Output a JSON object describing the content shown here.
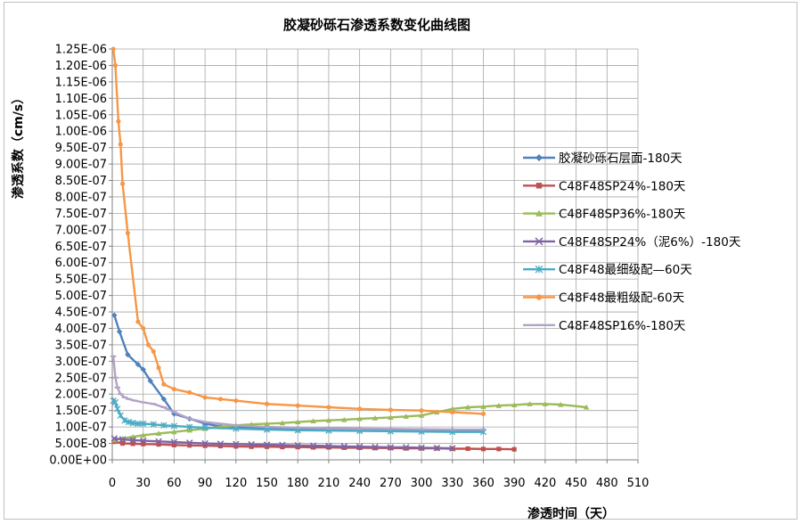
{
  "chart_data": {
    "type": "line",
    "title": "胶凝砂砾石渗透系数变化曲线图",
    "xlabel": "渗透时间（天）",
    "ylabel": "渗透系数（cm/s）",
    "xlim": [
      0,
      510
    ],
    "ylim": [
      0,
      1.25e-06
    ],
    "x_ticks": [
      "0",
      "30",
      "60",
      "90",
      "120",
      "150",
      "180",
      "210",
      "240",
      "270",
      "300",
      "330",
      "360",
      "390",
      "420",
      "450",
      "480",
      "510"
    ],
    "y_ticks": [
      "0.00E+00",
      "5.00E-08",
      "1.00E-07",
      "1.50E-07",
      "2.00E-07",
      "2.50E-07",
      "3.00E-07",
      "3.50E-07",
      "4.00E-07",
      "4.50E-07",
      "5.00E-07",
      "5.50E-07",
      "6.00E-07",
      "6.50E-07",
      "7.00E-07",
      "7.50E-07",
      "8.00E-07",
      "8.50E-07",
      "9.00E-07",
      "9.50E-07",
      "1.00E-06",
      "1.05E-06",
      "1.10E-06",
      "1.15E-06",
      "1.20E-06",
      "1.25E-06"
    ],
    "grid": true,
    "legend_position": "right",
    "series": [
      {
        "name": "胶凝砂砾石层面-180天",
        "color": "#4f81bd",
        "marker": "diamond",
        "x": [
          2,
          7,
          15,
          25,
          30,
          37,
          50,
          60,
          75,
          90,
          105,
          120,
          150,
          180,
          210,
          240,
          270,
          300,
          330,
          360
        ],
        "y": [
          4.4e-07,
          3.9e-07,
          3.2e-07,
          2.9e-07,
          2.75e-07,
          2.4e-07,
          1.85e-07,
          1.4e-07,
          1.25e-07,
          1.1e-07,
          1.02e-07,
          1e-07,
          9.7e-08,
          9.5e-08,
          9.3e-08,
          9.2e-08,
          9.1e-08,
          9e-08,
          9e-08,
          9e-08
        ]
      },
      {
        "name": "C48F48SP24%-180天",
        "color": "#c0504d",
        "marker": "square",
        "x": [
          2,
          10,
          20,
          30,
          45,
          60,
          75,
          90,
          105,
          120,
          135,
          150,
          165,
          180,
          195,
          210,
          225,
          240,
          255,
          270,
          285,
          300,
          315,
          330,
          345,
          360,
          375,
          390
        ],
        "y": [
          5.5e-08,
          5e-08,
          4.9e-08,
          4.8e-08,
          4.7e-08,
          4.5e-08,
          4.4e-08,
          4.3e-08,
          4.2e-08,
          4.1e-08,
          4e-08,
          4e-08,
          3.9e-08,
          3.9e-08,
          3.8e-08,
          3.8e-08,
          3.7e-08,
          3.7e-08,
          3.6e-08,
          3.6e-08,
          3.5e-08,
          3.5e-08,
          3.5e-08,
          3.4e-08,
          3.4e-08,
          3.3e-08,
          3.3e-08,
          3.2e-08
        ]
      },
      {
        "name": "C48F48SP36%-180天",
        "color": "#9bbb59",
        "marker": "triangle",
        "x": [
          2,
          10,
          20,
          30,
          45,
          60,
          75,
          90,
          105,
          120,
          135,
          150,
          165,
          180,
          195,
          210,
          225,
          240,
          255,
          270,
          285,
          300,
          315,
          330,
          345,
          360,
          375,
          390,
          405,
          420,
          435,
          460
        ],
        "y": [
          6e-08,
          6.5e-08,
          7e-08,
          7.5e-08,
          8e-08,
          8.5e-08,
          9e-08,
          9.5e-08,
          1e-07,
          1.05e-07,
          1.08e-07,
          1.1e-07,
          1.12e-07,
          1.15e-07,
          1.18e-07,
          1.2e-07,
          1.22e-07,
          1.25e-07,
          1.27e-07,
          1.29e-07,
          1.32e-07,
          1.35e-07,
          1.45e-07,
          1.55e-07,
          1.6e-07,
          1.62e-07,
          1.65e-07,
          1.67e-07,
          1.7e-07,
          1.7e-07,
          1.68e-07,
          1.6e-07
        ]
      },
      {
        "name": "C48F48SP24%（泥6%）-180天",
        "color": "#8064a2",
        "marker": "x",
        "x": [
          2,
          10,
          20,
          30,
          45,
          60,
          75,
          90,
          105,
          120,
          135,
          150,
          165,
          180,
          195,
          210,
          225,
          240,
          255,
          270,
          285,
          300,
          315,
          330
        ],
        "y": [
          6.5e-08,
          6.2e-08,
          6e-08,
          5.8e-08,
          5.6e-08,
          5.4e-08,
          5.2e-08,
          5e-08,
          4.9e-08,
          4.8e-08,
          4.7e-08,
          4.6e-08,
          4.5e-08,
          4.4e-08,
          4.3e-08,
          4.2e-08,
          4.1e-08,
          4e-08,
          3.9e-08,
          3.8e-08,
          3.8e-08,
          3.7e-08,
          3.6e-08,
          3.5e-08
        ]
      },
      {
        "name": "C48F48最细级配—60天",
        "color": "#4bacc6",
        "marker": "star",
        "x": [
          1,
          3,
          5,
          8,
          12,
          16,
          20,
          25,
          30,
          40,
          50,
          60,
          75,
          90,
          120,
          150,
          180,
          210,
          240,
          270,
          300,
          330,
          360
        ],
        "y": [
          1.8e-07,
          1.75e-07,
          1.55e-07,
          1.35e-07,
          1.2e-07,
          1.15e-07,
          1.12e-07,
          1.1e-07,
          1.1e-07,
          1.08e-07,
          1.05e-07,
          1.03e-07,
          1e-07,
          9.8e-08,
          9.5e-08,
          9.2e-08,
          9e-08,
          8.9e-08,
          8.8e-08,
          8.7e-08,
          8.6e-08,
          8.5e-08,
          8.5e-08
        ]
      },
      {
        "name": "C48F48最粗级配-60天",
        "color": "#f79646",
        "marker": "circle",
        "x": [
          1,
          3,
          6,
          8,
          10,
          15,
          25,
          30,
          35,
          40,
          45,
          50,
          60,
          75,
          90,
          105,
          120,
          150,
          180,
          210,
          240,
          270,
          300,
          330,
          360
        ],
        "y": [
          1.25e-06,
          1.2e-06,
          1.03e-06,
          9.6e-07,
          8.4e-07,
          6.9e-07,
          4.2e-07,
          4e-07,
          3.5e-07,
          3.3e-07,
          2.8e-07,
          2.3e-07,
          2.15e-07,
          2.05e-07,
          1.9e-07,
          1.85e-07,
          1.8e-07,
          1.7e-07,
          1.65e-07,
          1.6e-07,
          1.55e-07,
          1.52e-07,
          1.5e-07,
          1.45e-07,
          1.4e-07
        ]
      },
      {
        "name": "C48F48SP16%-180天",
        "color": "#b3a2c7",
        "marker": "line",
        "x": [
          1,
          3,
          5,
          8,
          12,
          16,
          22,
          30,
          40,
          50,
          60,
          75,
          90,
          105,
          120,
          150,
          180,
          210,
          240,
          270,
          300,
          330,
          360
        ],
        "y": [
          3.15e-07,
          2.5e-07,
          2.2e-07,
          2e-07,
          1.9e-07,
          1.85e-07,
          1.8e-07,
          1.75e-07,
          1.7e-07,
          1.6e-07,
          1.45e-07,
          1.25e-07,
          1.15e-07,
          1.1e-07,
          1.05e-07,
          1e-07,
          9.8e-08,
          9.6e-08,
          9.5e-08,
          9.4e-08,
          9.3e-08,
          9.2e-08,
          9.2e-08
        ]
      }
    ]
  }
}
